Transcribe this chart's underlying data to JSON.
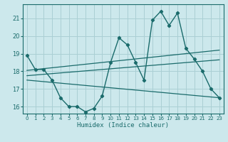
{
  "title": "",
  "xlabel": "Humidex (Indice chaleur)",
  "ylabel": "",
  "bg_color": "#cce8ec",
  "grid_color": "#aacfd4",
  "line_color": "#1a6b6b",
  "ylim": [
    15.6,
    21.8
  ],
  "xlim": [
    -0.5,
    23.5
  ],
  "yticks": [
    16,
    17,
    18,
    19,
    20,
    21
  ],
  "xticks": [
    0,
    1,
    2,
    3,
    4,
    5,
    6,
    7,
    8,
    9,
    10,
    11,
    12,
    13,
    14,
    15,
    16,
    17,
    18,
    19,
    20,
    21,
    22,
    23
  ],
  "main_x": [
    0,
    1,
    2,
    3,
    4,
    5,
    6,
    7,
    8,
    9,
    10,
    11,
    12,
    13,
    14,
    15,
    16,
    17,
    18,
    19,
    20,
    21,
    22,
    23
  ],
  "main_y": [
    18.9,
    18.1,
    18.1,
    17.5,
    16.5,
    16.0,
    16.0,
    15.7,
    15.9,
    16.6,
    18.5,
    19.9,
    19.5,
    18.5,
    17.5,
    20.9,
    21.4,
    20.6,
    21.3,
    19.3,
    18.7,
    18.0,
    17.0,
    16.5
  ],
  "upper_line_x": [
    0,
    23
  ],
  "upper_line_y": [
    18.05,
    19.2
  ],
  "mid_line_x": [
    0,
    23
  ],
  "mid_line_y": [
    17.75,
    18.65
  ],
  "lower_line_x": [
    0,
    23
  ],
  "lower_line_y": [
    17.5,
    16.5
  ]
}
